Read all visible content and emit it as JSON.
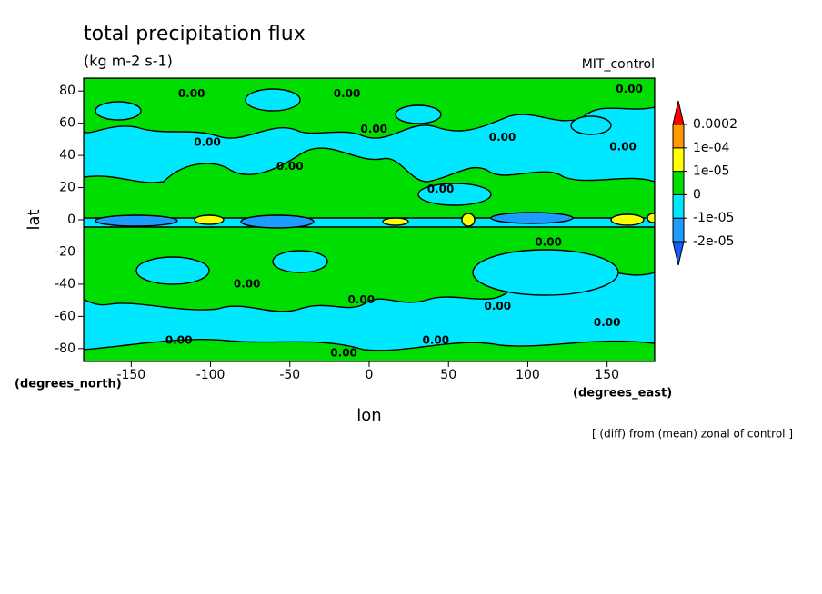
{
  "chart_data": {
    "type": "contour",
    "title": "total precipitation flux",
    "subtitle": "(kg m-2 s-1)",
    "dataset": "MIT_control",
    "xlabel": "lon",
    "ylabel": "lat",
    "xunits": "(degrees_east)",
    "yunits": "(degrees_north)",
    "footnote": "[ (diff) from (mean) zonal of control ]",
    "xlim": [
      -180,
      180
    ],
    "ylim": [
      -88,
      88
    ],
    "xticks": [
      -150,
      -100,
      -50,
      0,
      50,
      100,
      150
    ],
    "yticks": [
      -80,
      -60,
      -40,
      -20,
      0,
      20,
      40,
      60,
      80
    ],
    "levels": [
      {
        "value": -2e-05,
        "label": "-2e-05"
      },
      {
        "value": -1e-05,
        "label": "-1e-05"
      },
      0,
      {
        "value": 1e-05,
        "label": "1e-05"
      },
      {
        "value": 0.0001,
        "label": "1e-04"
      },
      0.0002
    ],
    "colors": [
      "#1060ff",
      "#1e9bff",
      "#00e8ff",
      "#00dd00",
      "#ffff00",
      "#ff9900",
      "#ff0000"
    ],
    "contour_labels": [
      {
        "text": "0.00",
        "lon": -112,
        "lat": 78
      },
      {
        "text": "0.00",
        "lon": -14,
        "lat": 78
      },
      {
        "text": "0.00",
        "lon": 164,
        "lat": 81
      },
      {
        "text": "0.00",
        "lon": -102,
        "lat": 48
      },
      {
        "text": "0.00",
        "lon": 3,
        "lat": 56
      },
      {
        "text": "0.00",
        "lon": 84,
        "lat": 51
      },
      {
        "text": "0.00",
        "lon": 160,
        "lat": 45
      },
      {
        "text": "0.00",
        "lon": -50,
        "lat": 33
      },
      {
        "text": "0.00",
        "lon": 45,
        "lat": 19
      },
      {
        "text": "0.00",
        "lon": 113,
        "lat": -14
      },
      {
        "text": "0.00",
        "lon": -77,
        "lat": -40
      },
      {
        "text": "0.00",
        "lon": -5,
        "lat": -50
      },
      {
        "text": "0.00",
        "lon": 81,
        "lat": -54
      },
      {
        "text": "0.00",
        "lon": 150,
        "lat": -64
      },
      {
        "text": "0.00",
        "lon": -120,
        "lat": -75
      },
      {
        "text": "0.00",
        "lon": -16,
        "lat": -83
      },
      {
        "text": "0.00",
        "lon": 42,
        "lat": -75
      }
    ]
  }
}
